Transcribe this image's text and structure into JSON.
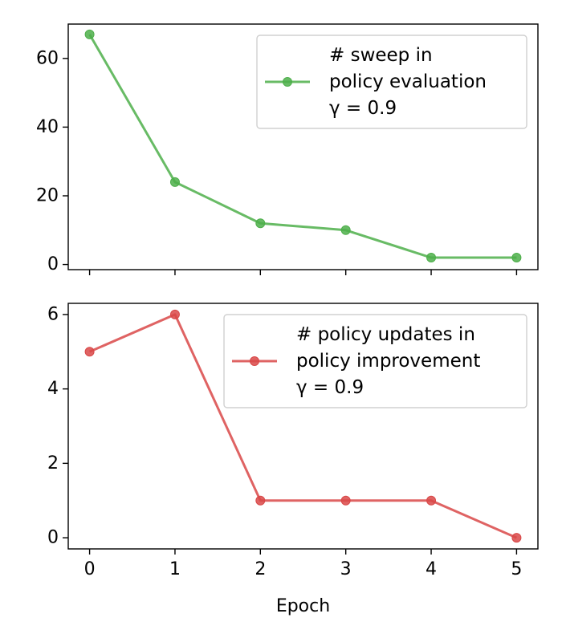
{
  "chart_data": [
    {
      "type": "line",
      "x": [
        0,
        1,
        2,
        3,
        4,
        5
      ],
      "series": [
        {
          "name": "# sweep in policy evaluation γ = 0.9",
          "legend_lines": [
            "# sweep in",
            "policy evaluation",
            "γ = 0.9"
          ],
          "values": [
            67,
            24,
            12,
            10,
            2,
            2
          ],
          "color": "#4daf4a"
        }
      ],
      "xlim": [
        -0.25,
        5.25
      ],
      "ylim": [
        -1.5,
        70
      ],
      "yticks": [
        0,
        20,
        40,
        60
      ],
      "xticks": [
        0,
        1,
        2,
        3,
        4,
        5
      ],
      "show_xtick_labels": false,
      "xlabel": "",
      "ylabel": "",
      "grid": false,
      "legend_position": "top-right"
    },
    {
      "type": "line",
      "x": [
        0,
        1,
        2,
        3,
        4,
        5
      ],
      "series": [
        {
          "name": "# policy updates in policy improvement γ = 0.9",
          "legend_lines": [
            "# policy updates in",
            "policy improvement",
            "γ = 0.9"
          ],
          "values": [
            5,
            6,
            1,
            1,
            1,
            0
          ],
          "color": "#d94848"
        }
      ],
      "xlim": [
        -0.25,
        5.25
      ],
      "ylim": [
        -0.3,
        6.3
      ],
      "yticks": [
        0,
        2,
        4,
        6
      ],
      "xticks": [
        0,
        1,
        2,
        3,
        4,
        5
      ],
      "show_xtick_labels": true,
      "xlabel": "Epoch",
      "ylabel": "",
      "grid": false,
      "legend_position": "top-right"
    }
  ]
}
